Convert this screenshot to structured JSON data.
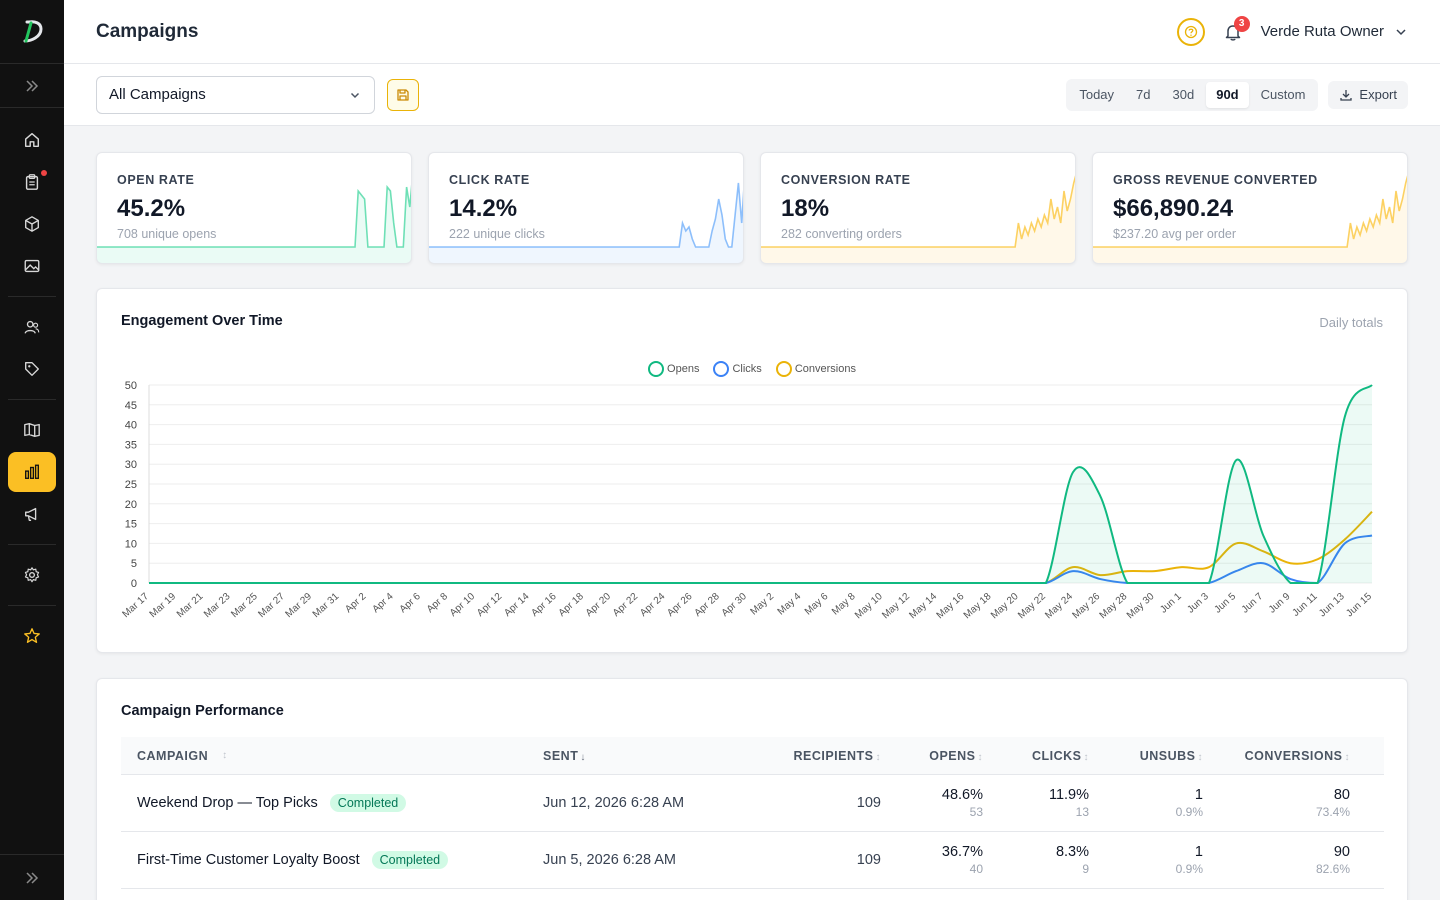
{
  "app": {
    "title": "Campaigns",
    "user_name": "Verde Ruta Owner",
    "notification_count": "3",
    "logo_letter": "D"
  },
  "sidebar": {
    "items": [
      {
        "name": "home-icon",
        "active": false
      },
      {
        "name": "clipboard-icon",
        "active": false,
        "dot": true
      },
      {
        "name": "box-icon",
        "active": false
      },
      {
        "name": "image-icon",
        "active": false
      },
      {
        "name": "users-icon",
        "active": false
      },
      {
        "name": "tag-icon",
        "active": false
      },
      {
        "name": "book-icon",
        "active": false
      },
      {
        "name": "bar-chart-icon",
        "active": true
      },
      {
        "name": "megaphone-icon",
        "active": false
      },
      {
        "name": "gear-icon",
        "active": false
      },
      {
        "name": "star-icon",
        "active": false
      }
    ]
  },
  "filters": {
    "campaign_select": "All Campaigns",
    "ranges": [
      "Today",
      "7d",
      "30d",
      "90d",
      "Custom"
    ],
    "active_range": "90d",
    "export_label": "Export"
  },
  "stats": [
    {
      "label": "OPEN RATE",
      "value": "45.2%",
      "sub": "708 unique opens",
      "color": "#34d399"
    },
    {
      "label": "CLICK RATE",
      "value": "14.2%",
      "sub": "222 unique clicks",
      "color": "#60a5fa"
    },
    {
      "label": "CONVERSION RATE",
      "value": "18%",
      "sub": "282 converting orders",
      "color": "#fbbf24"
    },
    {
      "label": "GROSS REVENUE CONVERTED",
      "value": "$66,890.24",
      "sub": "$237.20 avg per order",
      "color": "#fbbf24"
    }
  ],
  "engagement": {
    "title": "Engagement Over Time",
    "daily_label": "Daily totals"
  },
  "chart_data": {
    "type": "line",
    "x": [
      "Mar 17",
      "Mar 19",
      "Mar 21",
      "Mar 23",
      "Mar 25",
      "Mar 27",
      "Mar 29",
      "Mar 31",
      "Apr 2",
      "Apr 4",
      "Apr 6",
      "Apr 8",
      "Apr 10",
      "Apr 12",
      "Apr 14",
      "Apr 16",
      "Apr 18",
      "Apr 20",
      "Apr 22",
      "Apr 24",
      "Apr 26",
      "Apr 28",
      "Apr 30",
      "May 2",
      "May 4",
      "May 6",
      "May 8",
      "May 10",
      "May 12",
      "May 14",
      "May 16",
      "May 18",
      "May 20",
      "May 22",
      "May 24",
      "May 26",
      "May 28",
      "May 30",
      "Jun 1",
      "Jun 3",
      "Jun 5",
      "Jun 7",
      "Jun 9",
      "Jun 11",
      "Jun 13",
      "Jun 15"
    ],
    "ylim": [
      0,
      50
    ],
    "yticks": [
      0,
      5,
      10,
      15,
      20,
      25,
      30,
      35,
      40,
      45,
      50
    ],
    "grid": true,
    "legend_position": "top-center",
    "series": [
      {
        "name": "Opens",
        "color": "#10b981",
        "fill": true,
        "values": [
          0,
          0,
          0,
          0,
          0,
          0,
          0,
          0,
          0,
          0,
          0,
          0,
          0,
          0,
          0,
          0,
          0,
          0,
          0,
          0,
          0,
          0,
          0,
          0,
          0,
          0,
          0,
          0,
          0,
          0,
          0,
          0,
          0,
          0,
          28,
          22,
          0,
          0,
          0,
          0,
          31,
          12,
          0,
          0,
          42,
          50
        ]
      },
      {
        "name": "Clicks",
        "color": "#3b82f6",
        "fill": false,
        "values": [
          0,
          0,
          0,
          0,
          0,
          0,
          0,
          0,
          0,
          0,
          0,
          0,
          0,
          0,
          0,
          0,
          0,
          0,
          0,
          0,
          0,
          0,
          0,
          0,
          0,
          0,
          0,
          0,
          0,
          0,
          0,
          0,
          0,
          0,
          3,
          1,
          0,
          0,
          0,
          0,
          3,
          5,
          1,
          0,
          10,
          12
        ]
      },
      {
        "name": "Conversions",
        "color": "#eab308",
        "fill": false,
        "values": [
          0,
          0,
          0,
          0,
          0,
          0,
          0,
          0,
          0,
          0,
          0,
          0,
          0,
          0,
          0,
          0,
          0,
          0,
          0,
          0,
          0,
          0,
          0,
          0,
          0,
          0,
          0,
          0,
          0,
          0,
          0,
          0,
          0,
          0,
          4,
          2,
          3,
          3,
          4,
          4,
          10,
          8,
          5,
          6,
          11,
          18
        ]
      }
    ]
  },
  "table": {
    "title": "Campaign Performance",
    "headers": [
      "CAMPAIGN",
      "SENT",
      "RECIPIENTS",
      "OPENS",
      "CLICKS",
      "UNSUBS",
      "CONVERSIONS"
    ],
    "rows": [
      {
        "campaign": "Weekend Drop — Top Picks",
        "status": "Completed",
        "sent": "Jun 12, 2026 6:28 AM",
        "recipients": "109",
        "opens": "48.6%",
        "opens_sub": "53",
        "clicks": "11.9%",
        "clicks_sub": "13",
        "unsubs": "1",
        "unsubs_sub": "0.9%",
        "conversions": "80",
        "conversions_sub": "73.4%"
      },
      {
        "campaign": "First-Time Customer Loyalty Boost",
        "status": "Completed",
        "sent": "Jun 5, 2026 6:28 AM",
        "recipients": "109",
        "opens": "36.7%",
        "opens_sub": "40",
        "clicks": "8.3%",
        "clicks_sub": "9",
        "unsubs": "1",
        "unsubs_sub": "0.9%",
        "conversions": "90",
        "conversions_sub": "82.6%"
      }
    ]
  }
}
